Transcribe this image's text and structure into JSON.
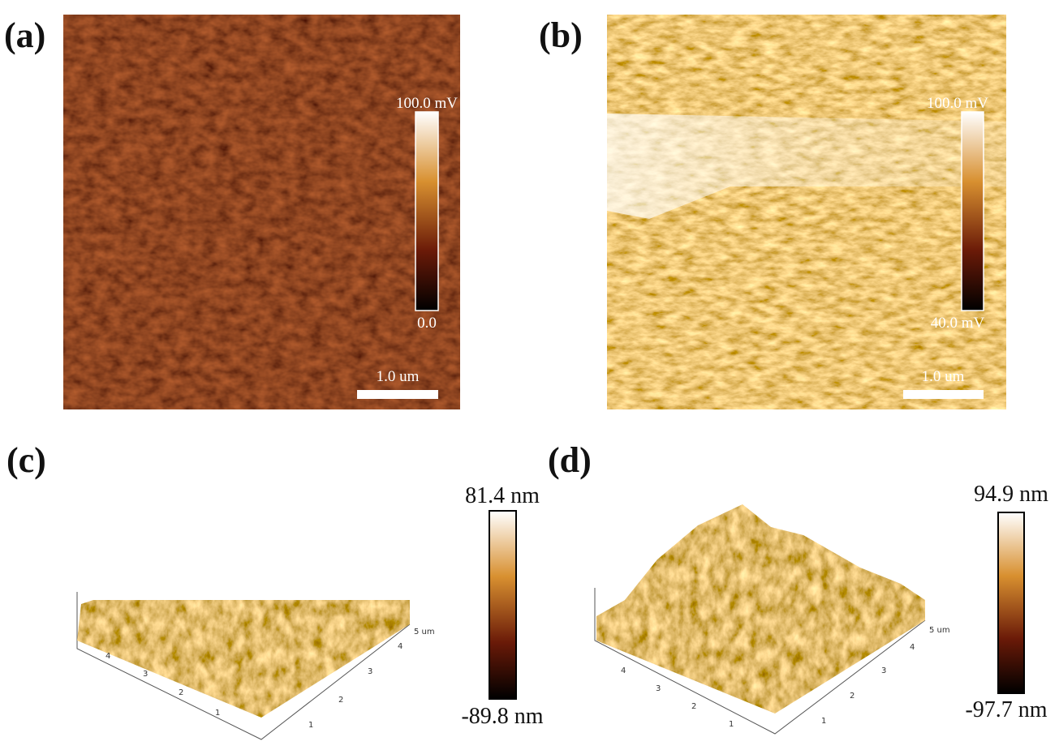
{
  "panels": [
    {
      "label": "(a)",
      "colorbar": {
        "max": "100.0 mV",
        "min": "0.0"
      },
      "scale_bar": "1.0 um"
    },
    {
      "label": "(b)",
      "colorbar": {
        "max": "100.0 mV",
        "min": "40.0 mV"
      },
      "scale_bar": "1.0 um"
    },
    {
      "label": "(c)",
      "colorbar": {
        "max": "81.4 nm",
        "min": "-89.8 nm"
      },
      "x_ticks": [
        "1",
        "2",
        "3",
        "4"
      ],
      "y_ticks": [
        "1",
        "2",
        "3",
        "4",
        "5 um"
      ]
    },
    {
      "label": "(d)",
      "colorbar": {
        "max": "94.9 nm",
        "min": "-97.7 nm"
      },
      "x_ticks": [
        "1",
        "2",
        "3",
        "4"
      ],
      "y_ticks": [
        "1",
        "2",
        "3",
        "4",
        "5 um"
      ]
    }
  ]
}
